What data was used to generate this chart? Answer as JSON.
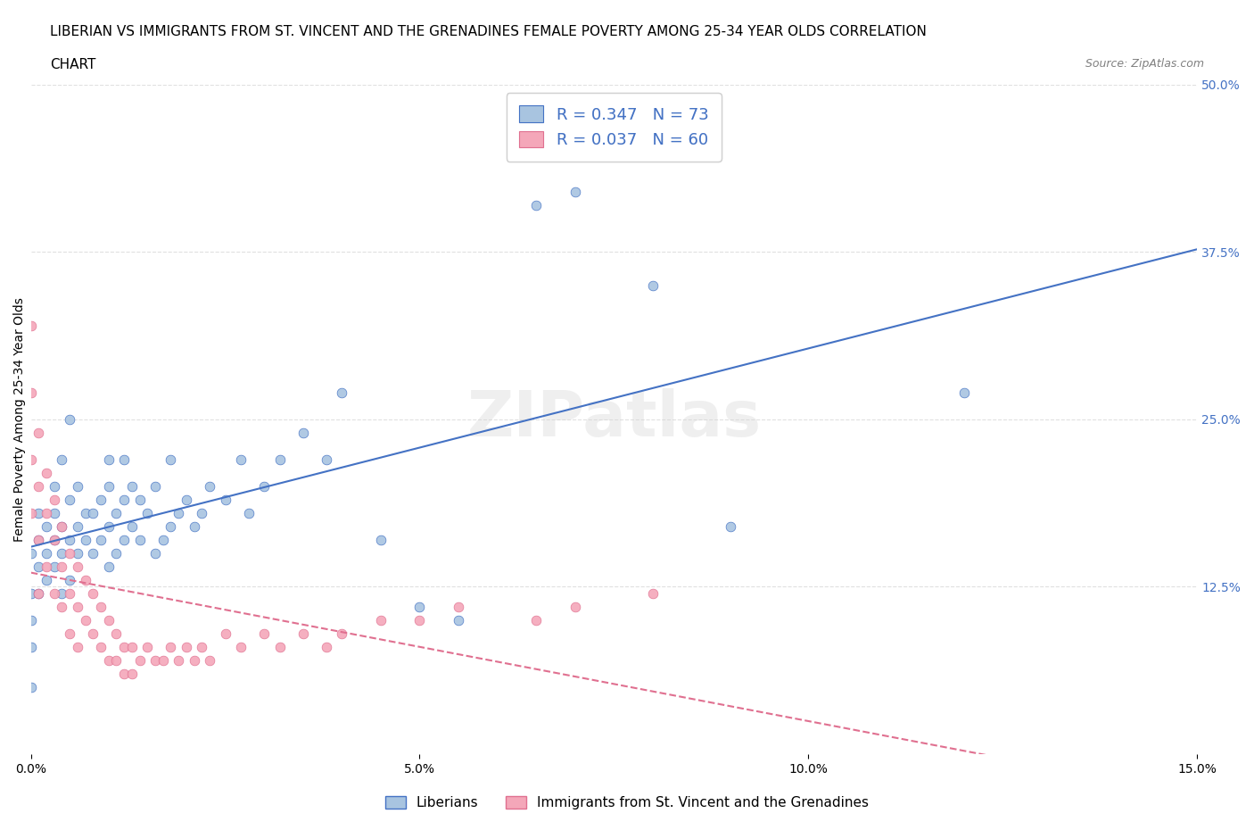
{
  "title_line1": "LIBERIAN VS IMMIGRANTS FROM ST. VINCENT AND THE GRENADINES FEMALE POVERTY AMONG 25-34 YEAR OLDS CORRELATION",
  "title_line2": "CHART",
  "source": "Source: ZipAtlas.com",
  "xlabel": "",
  "ylabel": "Female Poverty Among 25-34 Year Olds",
  "watermark": "ZIPatlas",
  "xlim": [
    0.0,
    0.15
  ],
  "ylim": [
    0.0,
    0.5
  ],
  "xticks": [
    0.0,
    0.05,
    0.1,
    0.15
  ],
  "xticklabels": [
    "0.0%",
    "5.0%",
    "10.0%",
    "15.0%"
  ],
  "yticks_right": [
    0.125,
    0.25,
    0.375,
    0.5
  ],
  "yticklabels_right": [
    "12.5%",
    "25.0%",
    "37.5%",
    "50.0%"
  ],
  "liberian_color": "#a8c4e0",
  "svg_color": "#f4a7b9",
  "liberian_R": 0.347,
  "liberian_N": 73,
  "svg_R": 0.037,
  "svg_N": 60,
  "trend_color_liberian": "#4472c4",
  "trend_color_svg": "#f4a7b9",
  "legend_box_color_liberian": "#a8c4e0",
  "legend_box_color_svg": "#f4a7b9",
  "liberian_x": [
    0.0,
    0.0,
    0.0,
    0.0,
    0.0,
    0.001,
    0.001,
    0.001,
    0.001,
    0.002,
    0.002,
    0.002,
    0.003,
    0.003,
    0.003,
    0.003,
    0.004,
    0.004,
    0.004,
    0.004,
    0.005,
    0.005,
    0.005,
    0.005,
    0.006,
    0.006,
    0.006,
    0.007,
    0.007,
    0.008,
    0.008,
    0.009,
    0.009,
    0.01,
    0.01,
    0.01,
    0.01,
    0.011,
    0.011,
    0.012,
    0.012,
    0.012,
    0.013,
    0.013,
    0.014,
    0.014,
    0.015,
    0.016,
    0.016,
    0.017,
    0.018,
    0.018,
    0.019,
    0.02,
    0.021,
    0.022,
    0.023,
    0.025,
    0.027,
    0.028,
    0.03,
    0.032,
    0.035,
    0.038,
    0.04,
    0.045,
    0.05,
    0.055,
    0.065,
    0.07,
    0.08,
    0.09,
    0.12
  ],
  "liberian_y": [
    0.05,
    0.08,
    0.1,
    0.12,
    0.15,
    0.12,
    0.14,
    0.16,
    0.18,
    0.13,
    0.15,
    0.17,
    0.14,
    0.16,
    0.18,
    0.2,
    0.12,
    0.15,
    0.17,
    0.22,
    0.13,
    0.16,
    0.19,
    0.25,
    0.15,
    0.17,
    0.2,
    0.16,
    0.18,
    0.15,
    0.18,
    0.16,
    0.19,
    0.14,
    0.17,
    0.2,
    0.22,
    0.15,
    0.18,
    0.16,
    0.19,
    0.22,
    0.17,
    0.2,
    0.16,
    0.19,
    0.18,
    0.15,
    0.2,
    0.16,
    0.17,
    0.22,
    0.18,
    0.19,
    0.17,
    0.18,
    0.2,
    0.19,
    0.22,
    0.18,
    0.2,
    0.22,
    0.24,
    0.22,
    0.27,
    0.16,
    0.11,
    0.1,
    0.41,
    0.42,
    0.35,
    0.17,
    0.27
  ],
  "svg_x": [
    0.0,
    0.0,
    0.0,
    0.0,
    0.001,
    0.001,
    0.001,
    0.001,
    0.002,
    0.002,
    0.002,
    0.003,
    0.003,
    0.003,
    0.004,
    0.004,
    0.004,
    0.005,
    0.005,
    0.005,
    0.006,
    0.006,
    0.006,
    0.007,
    0.007,
    0.008,
    0.008,
    0.009,
    0.009,
    0.01,
    0.01,
    0.011,
    0.011,
    0.012,
    0.012,
    0.013,
    0.013,
    0.014,
    0.015,
    0.016,
    0.017,
    0.018,
    0.019,
    0.02,
    0.021,
    0.022,
    0.023,
    0.025,
    0.027,
    0.03,
    0.032,
    0.035,
    0.038,
    0.04,
    0.045,
    0.05,
    0.055,
    0.065,
    0.07,
    0.08
  ],
  "svg_y": [
    0.32,
    0.27,
    0.22,
    0.18,
    0.24,
    0.2,
    0.16,
    0.12,
    0.21,
    0.18,
    0.14,
    0.19,
    0.16,
    0.12,
    0.17,
    0.14,
    0.11,
    0.15,
    0.12,
    0.09,
    0.14,
    0.11,
    0.08,
    0.13,
    0.1,
    0.12,
    0.09,
    0.11,
    0.08,
    0.1,
    0.07,
    0.09,
    0.07,
    0.08,
    0.06,
    0.08,
    0.06,
    0.07,
    0.08,
    0.07,
    0.07,
    0.08,
    0.07,
    0.08,
    0.07,
    0.08,
    0.07,
    0.09,
    0.08,
    0.09,
    0.08,
    0.09,
    0.08,
    0.09,
    0.1,
    0.1,
    0.11,
    0.1,
    0.11,
    0.12
  ],
  "background_color": "#ffffff",
  "grid_color": "#e0e0e0",
  "title_fontsize": 11,
  "axis_fontsize": 10,
  "tick_fontsize": 10
}
